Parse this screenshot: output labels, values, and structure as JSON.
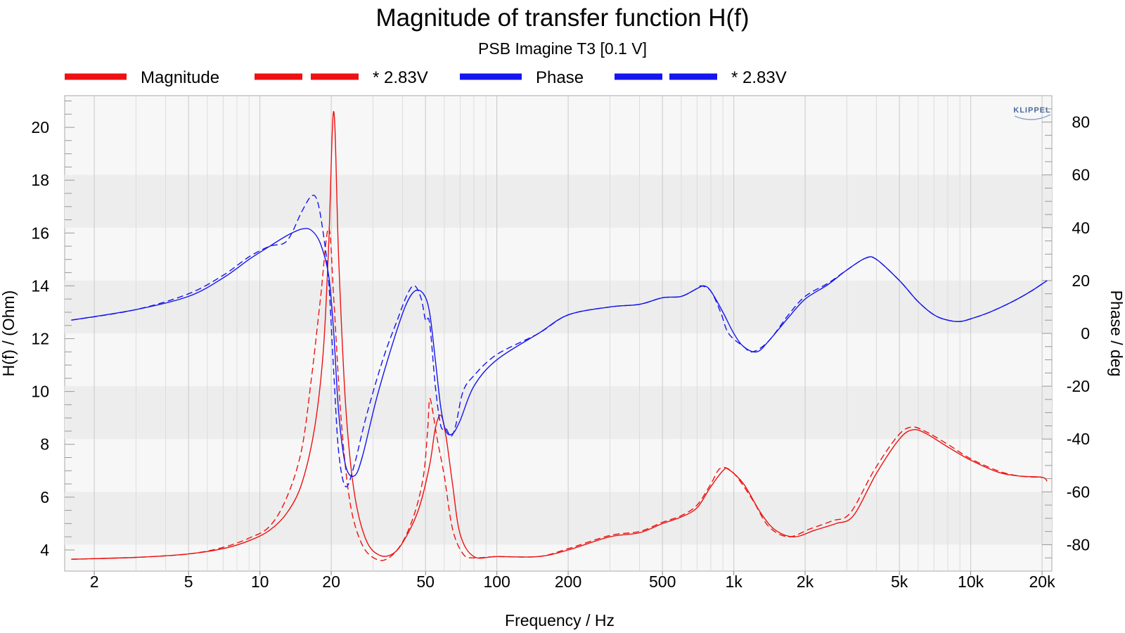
{
  "chart_data": {
    "type": "line",
    "title": "Magnitude of transfer function H(f)",
    "subtitle": "PSB Imagine T3 [0.1 V]",
    "xlabel": "Frequency / Hz",
    "ylabel_left": "H(f) / (Ohm)",
    "ylabel_right": "Phase / deg",
    "x_scale": "log",
    "xlim": [
      1.5,
      22000
    ],
    "ylim_left": [
      3.2,
      21.2
    ],
    "ylim_right": [
      -90,
      90
    ],
    "grid": true,
    "legend_position": "top",
    "logo": "KLIPPEL",
    "x_ticks": [
      {
        "value": 2,
        "label": "2"
      },
      {
        "value": 5,
        "label": "5"
      },
      {
        "value": 10,
        "label": "10"
      },
      {
        "value": 20,
        "label": "20"
      },
      {
        "value": 50,
        "label": "50"
      },
      {
        "value": 100,
        "label": "100"
      },
      {
        "value": 200,
        "label": "200"
      },
      {
        "value": 500,
        "label": "500"
      },
      {
        "value": 1000,
        "label": "1k"
      },
      {
        "value": 2000,
        "label": "2k"
      },
      {
        "value": 5000,
        "label": "5k"
      },
      {
        "value": 10000,
        "label": "10k"
      },
      {
        "value": 20000,
        "label": "20k"
      }
    ],
    "y_left_ticks": [
      4,
      6,
      8,
      10,
      12,
      14,
      16,
      18,
      20
    ],
    "y_right_ticks": [
      -80,
      -60,
      -40,
      -20,
      0,
      20,
      40,
      60,
      80
    ],
    "series": [
      {
        "name": "Magnitude",
        "axis": "left",
        "color": "#ee1111",
        "dash": "solid",
        "points": [
          [
            1.6,
            3.65
          ],
          [
            3,
            3.72
          ],
          [
            5,
            3.85
          ],
          [
            7,
            4.05
          ],
          [
            9,
            4.35
          ],
          [
            11,
            4.75
          ],
          [
            13,
            5.4
          ],
          [
            15,
            6.5
          ],
          [
            17,
            8.6
          ],
          [
            18.5,
            11.5
          ],
          [
            19.5,
            15.5
          ],
          [
            20.5,
            20.6
          ],
          [
            21.5,
            15
          ],
          [
            23,
            9.5
          ],
          [
            25,
            6.2
          ],
          [
            28,
            4.4
          ],
          [
            32,
            3.8
          ],
          [
            37,
            3.9
          ],
          [
            42,
            4.6
          ],
          [
            47,
            5.6
          ],
          [
            52,
            7.2
          ],
          [
            55,
            8.6
          ],
          [
            58,
            9.1
          ],
          [
            61,
            8.3
          ],
          [
            65,
            6.5
          ],
          [
            70,
            4.6
          ],
          [
            80,
            3.75
          ],
          [
            100,
            3.75
          ],
          [
            150,
            3.75
          ],
          [
            200,
            4.0
          ],
          [
            300,
            4.5
          ],
          [
            400,
            4.65
          ],
          [
            500,
            5.0
          ],
          [
            600,
            5.25
          ],
          [
            700,
            5.6
          ],
          [
            800,
            6.4
          ],
          [
            900,
            7.0
          ],
          [
            950,
            7.05
          ],
          [
            1100,
            6.5
          ],
          [
            1300,
            5.4
          ],
          [
            1500,
            4.75
          ],
          [
            1800,
            4.5
          ],
          [
            2200,
            4.75
          ],
          [
            2700,
            5.0
          ],
          [
            3200,
            5.3
          ],
          [
            4000,
            6.9
          ],
          [
            5000,
            8.2
          ],
          [
            5700,
            8.55
          ],
          [
            6500,
            8.4
          ],
          [
            8000,
            7.9
          ],
          [
            10000,
            7.4
          ],
          [
            13000,
            6.95
          ],
          [
            16000,
            6.8
          ],
          [
            20000,
            6.75
          ],
          [
            21000,
            6.6
          ]
        ]
      },
      {
        "name": "* 2.83V",
        "axis": "left",
        "color": "#ee1111",
        "dash": "dashed",
        "points": [
          [
            1.6,
            3.65
          ],
          [
            3,
            3.72
          ],
          [
            5,
            3.85
          ],
          [
            7,
            4.1
          ],
          [
            9,
            4.45
          ],
          [
            11,
            4.9
          ],
          [
            13,
            6.0
          ],
          [
            15,
            7.8
          ],
          [
            16.5,
            10.5
          ],
          [
            18,
            13.5
          ],
          [
            19.5,
            16.2
          ],
          [
            20.5,
            13.5
          ],
          [
            22,
            9.0
          ],
          [
            24,
            5.8
          ],
          [
            27,
            4.2
          ],
          [
            31,
            3.65
          ],
          [
            35,
            3.7
          ],
          [
            40,
            4.3
          ],
          [
            45,
            5.4
          ],
          [
            49,
            6.8
          ],
          [
            51,
            8.5
          ],
          [
            52,
            9.7
          ],
          [
            53.5,
            9.3
          ],
          [
            56,
            8.2
          ],
          [
            60,
            6.8
          ],
          [
            65,
            4.8
          ],
          [
            72,
            3.85
          ],
          [
            80,
            3.7
          ],
          [
            100,
            3.75
          ],
          [
            150,
            3.75
          ],
          [
            200,
            4.05
          ],
          [
            300,
            4.55
          ],
          [
            400,
            4.7
          ],
          [
            500,
            5.05
          ],
          [
            600,
            5.3
          ],
          [
            700,
            5.7
          ],
          [
            800,
            6.5
          ],
          [
            880,
            7.1
          ],
          [
            1000,
            6.9
          ],
          [
            1200,
            5.9
          ],
          [
            1400,
            4.9
          ],
          [
            1700,
            4.5
          ],
          [
            2100,
            4.8
          ],
          [
            2600,
            5.1
          ],
          [
            3100,
            5.4
          ],
          [
            3900,
            7.0
          ],
          [
            4900,
            8.3
          ],
          [
            5600,
            8.65
          ],
          [
            6400,
            8.5
          ],
          [
            8000,
            8.0
          ],
          [
            10000,
            7.45
          ],
          [
            13000,
            7.0
          ],
          [
            16000,
            6.8
          ],
          [
            20000,
            6.75
          ]
        ]
      },
      {
        "name": "Phase",
        "axis": "right",
        "color": "#1515ee",
        "dash": "solid",
        "points": [
          [
            1.6,
            5
          ],
          [
            3,
            9
          ],
          [
            5,
            14
          ],
          [
            7,
            21
          ],
          [
            9,
            28
          ],
          [
            11,
            33
          ],
          [
            13,
            37
          ],
          [
            15,
            39.5
          ],
          [
            16.5,
            39
          ],
          [
            18,
            34
          ],
          [
            19.5,
            22
          ],
          [
            20.5,
            0
          ],
          [
            21.5,
            -30
          ],
          [
            23,
            -50
          ],
          [
            25,
            -54
          ],
          [
            27,
            -47
          ],
          [
            31,
            -25
          ],
          [
            36,
            -5
          ],
          [
            41,
            10
          ],
          [
            45,
            16
          ],
          [
            49,
            15
          ],
          [
            52,
            8
          ],
          [
            55,
            -10
          ],
          [
            58,
            -28
          ],
          [
            61,
            -37
          ],
          [
            65,
            -38
          ],
          [
            70,
            -33
          ],
          [
            80,
            -20
          ],
          [
            100,
            -10
          ],
          [
            150,
            0
          ],
          [
            200,
            7
          ],
          [
            300,
            10
          ],
          [
            400,
            11
          ],
          [
            500,
            13.5
          ],
          [
            600,
            14
          ],
          [
            700,
            17
          ],
          [
            750,
            18
          ],
          [
            800,
            16
          ],
          [
            900,
            8
          ],
          [
            1000,
            0
          ],
          [
            1100,
            -5
          ],
          [
            1250,
            -7
          ],
          [
            1400,
            -3
          ],
          [
            1700,
            6
          ],
          [
            2000,
            13
          ],
          [
            2500,
            18.5
          ],
          [
            3000,
            24
          ],
          [
            3600,
            28.5
          ],
          [
            4000,
            28
          ],
          [
            5000,
            20
          ],
          [
            6000,
            12
          ],
          [
            7000,
            7
          ],
          [
            8000,
            5
          ],
          [
            9000,
            4.5
          ],
          [
            10000,
            5.5
          ],
          [
            12000,
            8
          ],
          [
            15000,
            12
          ],
          [
            18000,
            16
          ],
          [
            21000,
            20
          ]
        ]
      },
      {
        "name": "* 2.83V",
        "axis": "right",
        "color": "#1515ee",
        "dash": "dashed",
        "points": [
          [
            1.6,
            5
          ],
          [
            3,
            9
          ],
          [
            5,
            15
          ],
          [
            7,
            22
          ],
          [
            9,
            29
          ],
          [
            11,
            33
          ],
          [
            13,
            35
          ],
          [
            15,
            46
          ],
          [
            16.5,
            52
          ],
          [
            17.5,
            50
          ],
          [
            18.5,
            38
          ],
          [
            19.5,
            20
          ],
          [
            20.5,
            -15
          ],
          [
            21.5,
            -45
          ],
          [
            23,
            -58
          ],
          [
            25,
            -50
          ],
          [
            28,
            -32
          ],
          [
            33,
            -10
          ],
          [
            38,
            5
          ],
          [
            42,
            15
          ],
          [
            45,
            18
          ],
          [
            48,
            13
          ],
          [
            50,
            5
          ],
          [
            52,
            4
          ],
          [
            55,
            -20
          ],
          [
            58,
            -35
          ],
          [
            61,
            -36
          ],
          [
            64,
            -39
          ],
          [
            67,
            -35
          ],
          [
            72,
            -22
          ],
          [
            80,
            -16
          ],
          [
            100,
            -8
          ],
          [
            150,
            0
          ],
          [
            200,
            7
          ],
          [
            300,
            10
          ],
          [
            400,
            11
          ],
          [
            500,
            13.5
          ],
          [
            600,
            14
          ],
          [
            700,
            17
          ],
          [
            730,
            18
          ],
          [
            800,
            16
          ],
          [
            880,
            8
          ],
          [
            950,
            0
          ],
          [
            1100,
            -5
          ],
          [
            1200,
            -7
          ],
          [
            1400,
            -3
          ],
          [
            1700,
            7
          ],
          [
            2000,
            14
          ],
          [
            2500,
            19
          ],
          [
            3000,
            24
          ],
          [
            3600,
            28.5
          ],
          [
            4000,
            28
          ],
          [
            5000,
            20
          ],
          [
            6000,
            12
          ],
          [
            7000,
            7
          ],
          [
            8000,
            5
          ],
          [
            9000,
            4.5
          ],
          [
            10000,
            5.5
          ],
          [
            12000,
            8
          ],
          [
            15000,
            12
          ],
          [
            18000,
            16
          ],
          [
            21000,
            20
          ]
        ]
      }
    ]
  }
}
